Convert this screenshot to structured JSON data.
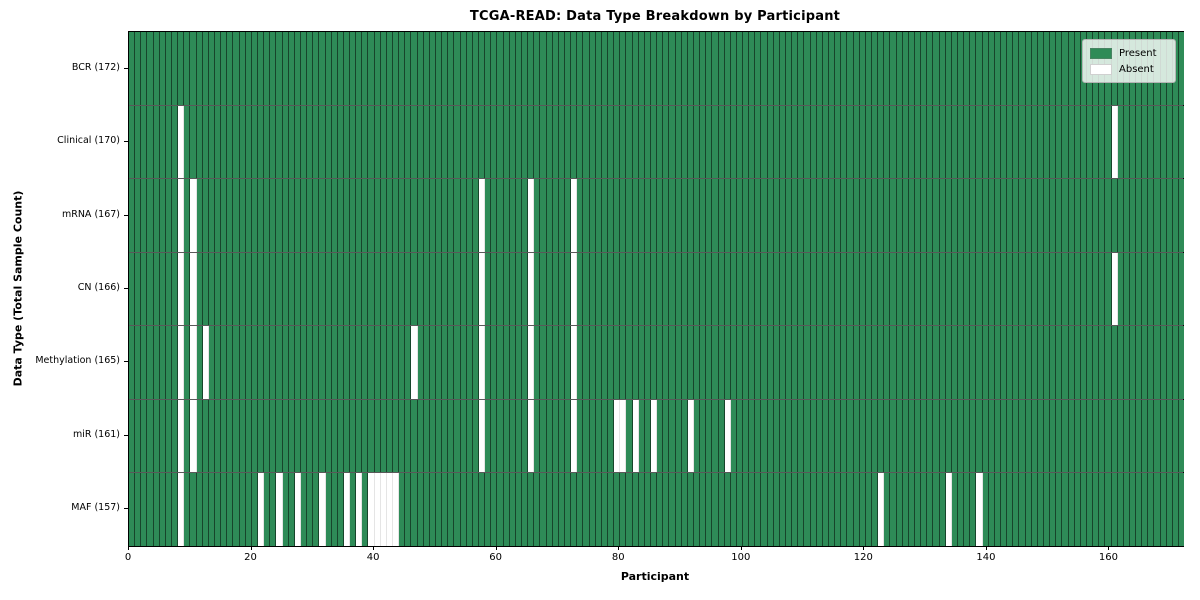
{
  "chart_data": {
    "type": "heatmap",
    "title": "TCGA-READ: Data Type Breakdown by Participant",
    "xlabel": "Participant",
    "ylabel": "Data Type (Total Sample Count)",
    "n_participants": 172,
    "x_ticks": [
      0,
      20,
      40,
      60,
      80,
      100,
      120,
      140,
      160
    ],
    "legend": [
      {
        "label": "Present",
        "color": "#2e8b57"
      },
      {
        "label": "Absent",
        "color": "#ffffff"
      }
    ],
    "colors": {
      "present": "#2e8b57",
      "absent": "#ffffff",
      "cell_edge": "rgba(0,0,0,0.5)",
      "spine": "#000000"
    },
    "grid": "off",
    "legend_position": "upper right",
    "rows": [
      {
        "label": "BCR (172)",
        "name": "BCR",
        "count": 172,
        "absent": []
      },
      {
        "label": "Clinical (170)",
        "name": "Clinical",
        "count": 170,
        "absent": [
          8,
          160
        ]
      },
      {
        "label": "mRNA (167)",
        "name": "mRNA",
        "count": 167,
        "absent": [
          8,
          10,
          57,
          65,
          72
        ]
      },
      {
        "label": "CN (166)",
        "name": "CN",
        "count": 166,
        "absent": [
          8,
          10,
          57,
          65,
          72,
          160
        ]
      },
      {
        "label": "Methylation (165)",
        "name": "Methylation",
        "count": 165,
        "absent": [
          8,
          10,
          12,
          46,
          57,
          65,
          72
        ]
      },
      {
        "label": "miR (161)",
        "name": "miR",
        "count": 161,
        "absent": [
          8,
          10,
          57,
          65,
          72,
          79,
          80,
          82,
          85,
          91,
          97
        ]
      },
      {
        "label": "MAF (157)",
        "name": "MAF",
        "count": 157,
        "absent": [
          8,
          21,
          24,
          27,
          31,
          35,
          37,
          39,
          40,
          41,
          42,
          43,
          122,
          133,
          138
        ]
      }
    ]
  }
}
